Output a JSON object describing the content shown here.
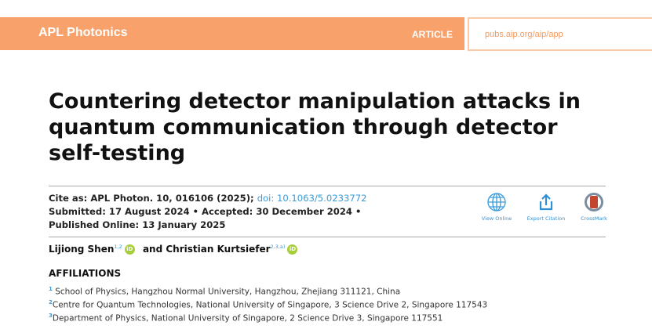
{
  "header": {
    "journal": "APL Photonics",
    "type": "ARTICLE",
    "url": "pubs.aip.org/aip/app",
    "accent": "#f9a16a"
  },
  "title": "Countering detector manipulation attacks in quantum communication through detector self-testing",
  "cite": {
    "prefix": "Cite as: APL Photon. 10, 016106 (2025); ",
    "doi": "doi: 10.1063/5.0233772",
    "dates_line1": "Submitted: 17 August 2024 • Accepted: 30 December 2024 •",
    "dates_line2": "Published Online: 13 January 2025"
  },
  "actions": [
    {
      "label": "View Online",
      "icon": "globe-icon"
    },
    {
      "label": "Export Citation",
      "icon": "export-icon"
    },
    {
      "label": "CrossMark",
      "icon": "crossmark-icon"
    }
  ],
  "authors": [
    {
      "name": "Lijiong Shen",
      "sup": "1,2"
    },
    {
      "name": "Christian Kurtsiefer",
      "sup": "2,3,a)"
    }
  ],
  "authors_joiner": "and",
  "orcid_label": "iD",
  "affiliations_heading": "AFFILIATIONS",
  "affiliations": [
    {
      "num": "1",
      "text": "School of Physics, Hangzhou Normal University, Hangzhou, Zhejiang 311121, China"
    },
    {
      "num": "2",
      "text": "Centre for Quantum Technologies, National University of Singapore, 3 Science Drive 2, Singapore 117543"
    },
    {
      "num": "3",
      "text": "Department of Physics, National University of Singapore, 2 Science Drive 3, Singapore 117551"
    }
  ]
}
